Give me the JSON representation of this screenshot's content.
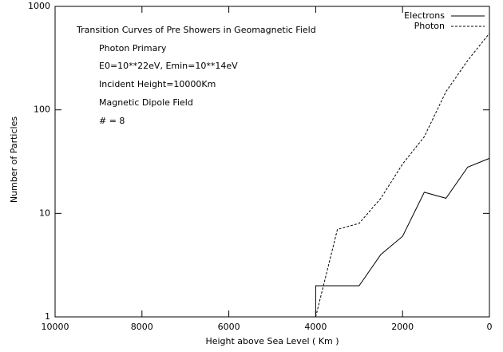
{
  "chart_data": {
    "type": "line",
    "title": "Transition Curves of Pre Showers in Geomagnetic Field",
    "annotations": [
      "Photon Primary",
      "E0=10**22eV, Emin=10**14eV",
      "Incident Height=10000Km",
      "Magnetic Dipole Field",
      "# = 8"
    ],
    "xlabel": "Height above Sea Level ( Km )",
    "ylabel": "Number of Particles",
    "xlim": [
      10000,
      0
    ],
    "xticks": [
      10000,
      8000,
      6000,
      4000,
      2000,
      0
    ],
    "ylim": [
      1,
      1000
    ],
    "yticks": [
      1,
      10,
      100,
      1000
    ],
    "ylog": true,
    "legend": "top-right",
    "series": [
      {
        "name": "Electrons",
        "color": "#000000",
        "dashed": false,
        "x": [
          4000,
          4000,
          3500,
          3000,
          2500,
          2000,
          1500,
          1000,
          500,
          0
        ],
        "values": [
          1,
          2,
          2,
          2,
          4,
          6,
          16,
          14,
          28,
          34
        ]
      },
      {
        "name": "Photon",
        "color": "#000000",
        "dashed": true,
        "x": [
          4000,
          3500,
          3000,
          2500,
          2000,
          1500,
          1000,
          500,
          0
        ],
        "values": [
          1,
          7,
          8,
          14,
          30,
          55,
          150,
          300,
          550
        ]
      }
    ]
  }
}
